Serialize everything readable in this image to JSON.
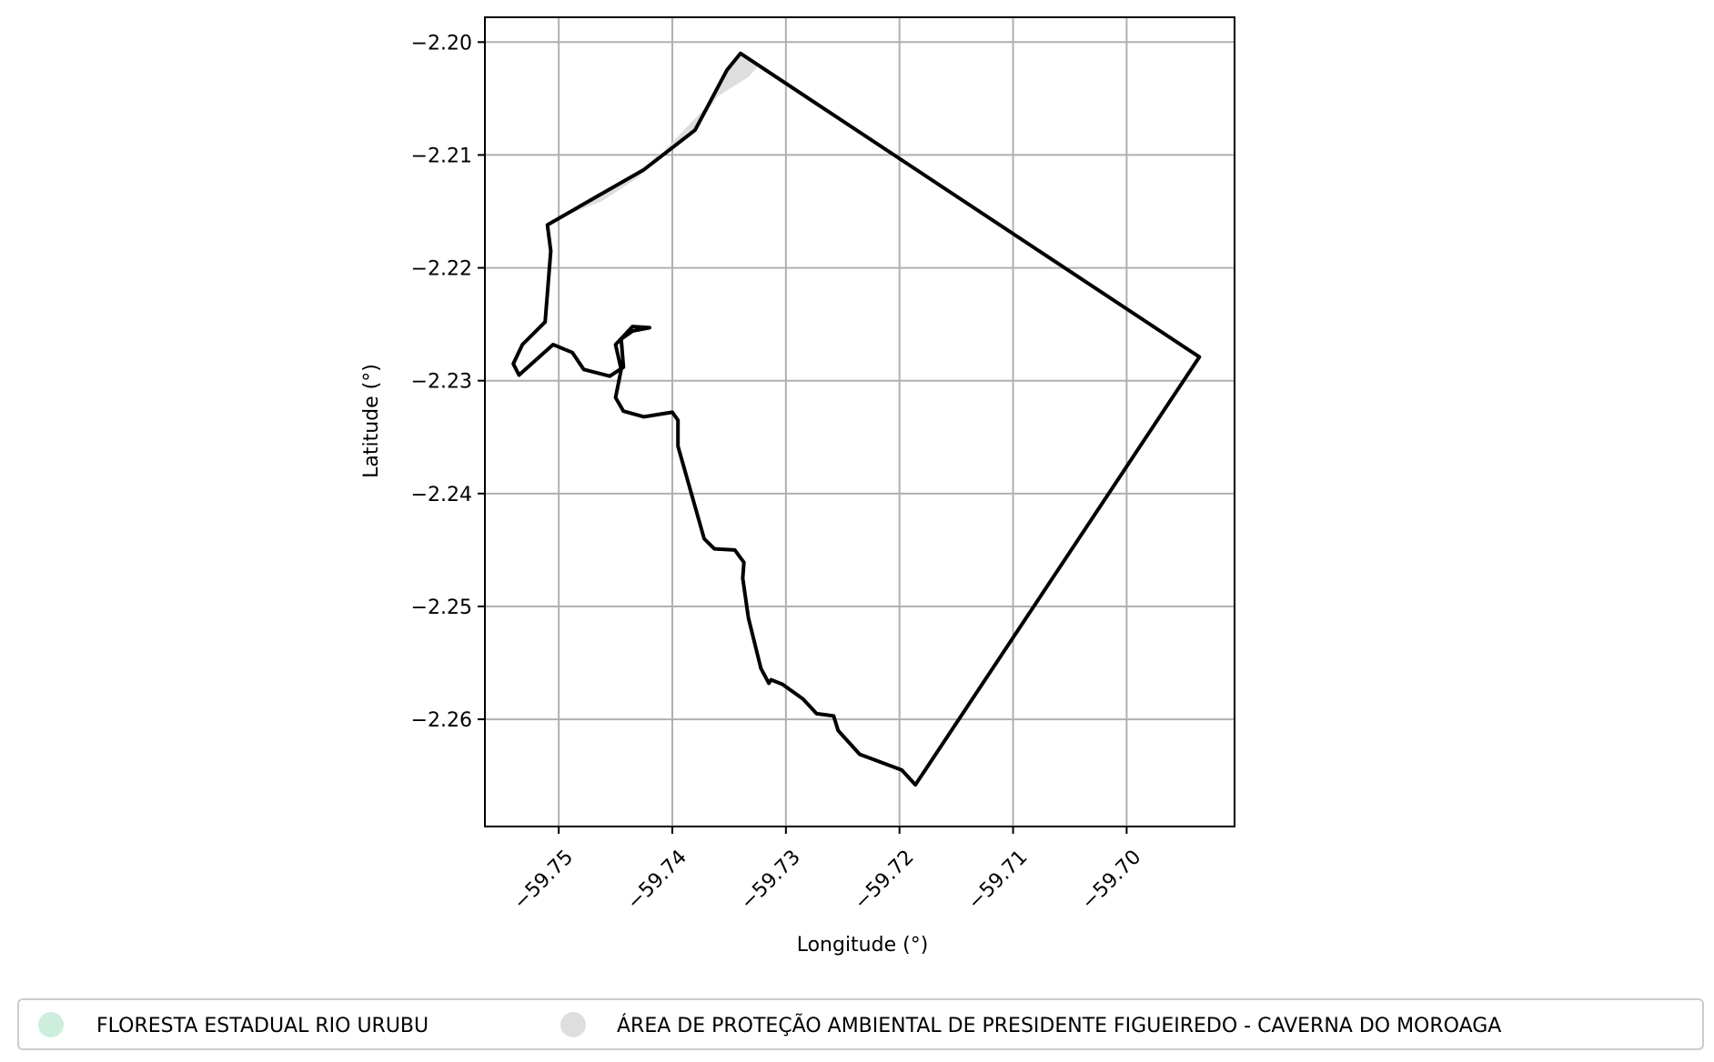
{
  "chart_data": {
    "type": "map",
    "xlabel": "Longitude (°)",
    "ylabel": "Latitude (°)",
    "xlim": [
      -59.7565,
      -59.6905
    ],
    "ylim": [
      -2.2695,
      -2.1978
    ],
    "xticks": [
      -59.75,
      -59.74,
      -59.73,
      -59.72,
      -59.71,
      -59.7
    ],
    "xtick_labels": [
      "−59.75",
      "−59.74",
      "−59.73",
      "−59.72",
      "−59.71",
      "−59.70"
    ],
    "yticks": [
      -2.2,
      -2.21,
      -2.22,
      -2.23,
      -2.24,
      -2.25,
      -2.26
    ],
    "ytick_labels": [
      "−2.20",
      "−2.21",
      "−2.22",
      "−2.23",
      "−2.24",
      "−2.25",
      "−2.26"
    ],
    "grid": true,
    "legend_position": "bottom",
    "layers": [
      {
        "name": "FLORESTA ESTADUAL RIO URUBU",
        "color": "#cdeedd",
        "fill": "#cdeedd",
        "stroke": "#000000",
        "polygon": [
          [
            -59.734,
            -2.201
          ],
          [
            -59.6936,
            -2.2279
          ],
          [
            -59.7186,
            -2.2658
          ],
          [
            -59.7198,
            -2.2645
          ],
          [
            -59.7235,
            -2.2631
          ],
          [
            -59.7254,
            -2.261
          ],
          [
            -59.7258,
            -2.2597
          ],
          [
            -59.7273,
            -2.2595
          ],
          [
            -59.7285,
            -2.2582
          ],
          [
            -59.7303,
            -2.2569
          ],
          [
            -59.7313,
            -2.2565
          ],
          [
            -59.7315,
            -2.2568
          ],
          [
            -59.7322,
            -2.2555
          ],
          [
            -59.7333,
            -2.251
          ],
          [
            -59.7338,
            -2.2475
          ],
          [
            -59.7337,
            -2.2461
          ],
          [
            -59.7345,
            -2.245
          ],
          [
            -59.7363,
            -2.2449
          ],
          [
            -59.7372,
            -2.244
          ],
          [
            -59.7395,
            -2.2358
          ],
          [
            -59.7395,
            -2.2335
          ],
          [
            -59.74,
            -2.2328
          ],
          [
            -59.7425,
            -2.2332
          ],
          [
            -59.7443,
            -2.2327
          ],
          [
            -59.745,
            -2.2315
          ],
          [
            -59.7445,
            -2.229
          ],
          [
            -59.745,
            -2.2268
          ],
          [
            -59.7435,
            -2.2252
          ],
          [
            -59.742,
            -2.2253
          ],
          [
            -59.7435,
            -2.2256
          ],
          [
            -59.7445,
            -2.2263
          ],
          [
            -59.7443,
            -2.2288
          ],
          [
            -59.7455,
            -2.2296
          ],
          [
            -59.7478,
            -2.229
          ],
          [
            -59.7488,
            -2.2275
          ],
          [
            -59.7505,
            -2.2268
          ],
          [
            -59.7535,
            -2.2295
          ],
          [
            -59.754,
            -2.2285
          ],
          [
            -59.7532,
            -2.2268
          ],
          [
            -59.7512,
            -2.2248
          ],
          [
            -59.7507,
            -2.2185
          ],
          [
            -59.751,
            -2.2162
          ],
          [
            -59.7465,
            -2.2136
          ],
          [
            -59.7425,
            -2.2113
          ],
          [
            -59.738,
            -2.2078
          ],
          [
            -59.7352,
            -2.2025
          ],
          [
            -59.734,
            -2.201
          ]
        ]
      },
      {
        "name": "ÁREA DE PROTEÇÃO AMBIENTAL DE PRESIDENTE FIGUEIREDO - CAVERNA DO MOROAGA",
        "color": "#dedede",
        "fill": "#dedede",
        "stroke": "none",
        "polygon": [
          [
            -59.734,
            -2.201
          ],
          [
            -59.7325,
            -2.2022
          ],
          [
            -59.7333,
            -2.2031
          ],
          [
            -59.736,
            -2.2048
          ],
          [
            -59.738,
            -2.2078
          ],
          [
            -59.7415,
            -2.2102
          ],
          [
            -59.7425,
            -2.2113
          ],
          [
            -59.7465,
            -2.2136
          ],
          [
            -59.751,
            -2.216
          ],
          [
            -59.7462,
            -2.2141
          ],
          [
            -59.743,
            -2.212
          ],
          [
            -59.7405,
            -2.2094
          ],
          [
            -59.737,
            -2.2057
          ],
          [
            -59.7352,
            -2.2025
          ],
          [
            -59.734,
            -2.201
          ]
        ]
      }
    ]
  }
}
